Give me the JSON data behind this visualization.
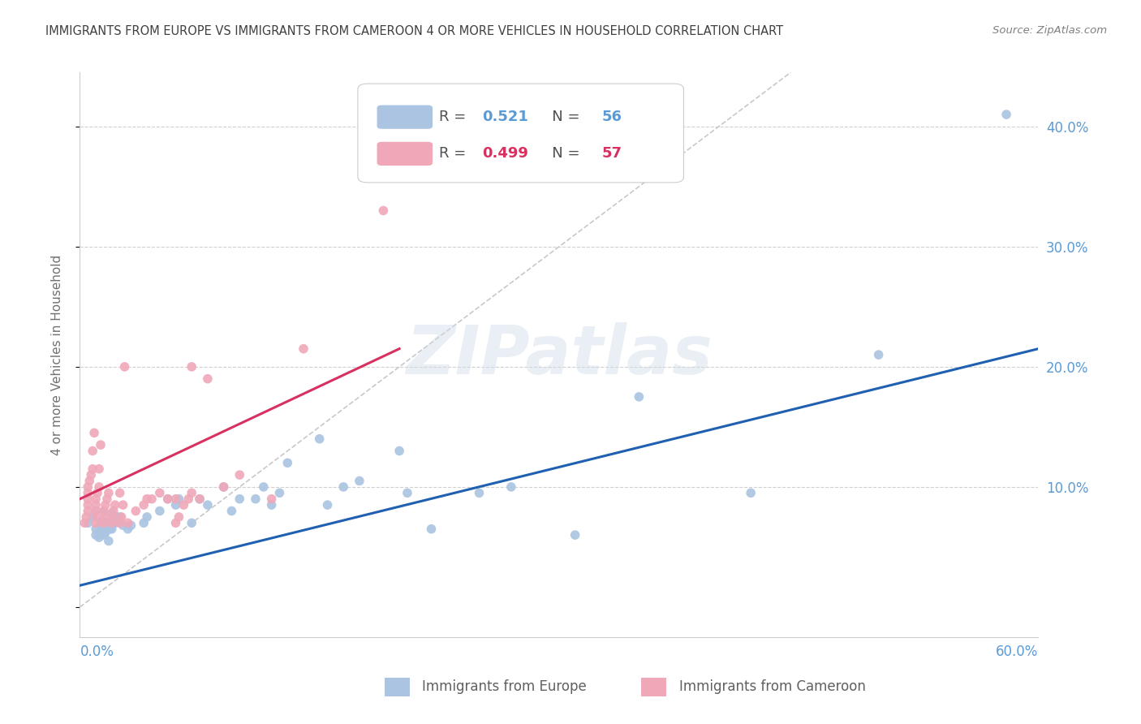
{
  "title": "IMMIGRANTS FROM EUROPE VS IMMIGRANTS FROM CAMEROON 4 OR MORE VEHICLES IN HOUSEHOLD CORRELATION CHART",
  "source": "Source: ZipAtlas.com",
  "ylabel": "4 or more Vehicles in Household",
  "ytick_vals": [
    0.0,
    0.1,
    0.2,
    0.3,
    0.4
  ],
  "ytick_labels": [
    "",
    "10.0%",
    "20.0%",
    "30.0%",
    "40.0%"
  ],
  "xlim": [
    0.0,
    0.6
  ],
  "ylim": [
    -0.025,
    0.445
  ],
  "europe_R": "0.521",
  "europe_N": "56",
  "cameroon_R": "0.499",
  "cameroon_N": "57",
  "europe_color": "#aac4e2",
  "cameroon_color": "#f0a8b8",
  "europe_line_color": "#2060b0",
  "cameroon_line_color": "#d83060",
  "diagonal_color": "#c8c8c8",
  "watermark": "ZIPatlas",
  "legend_europe": "Immigrants from Europe",
  "legend_cameroon": "Immigrants from Cameroon",
  "europe_scatter_x": [
    0.005,
    0.008,
    0.01,
    0.01,
    0.01,
    0.012,
    0.012,
    0.013,
    0.014,
    0.015,
    0.015,
    0.015,
    0.016,
    0.017,
    0.018,
    0.018,
    0.019,
    0.02,
    0.02,
    0.022,
    0.023,
    0.025,
    0.027,
    0.03,
    0.032,
    0.04,
    0.042,
    0.05,
    0.055,
    0.06,
    0.062,
    0.07,
    0.075,
    0.08,
    0.09,
    0.095,
    0.1,
    0.11,
    0.115,
    0.12,
    0.125,
    0.13,
    0.15,
    0.155,
    0.165,
    0.175,
    0.2,
    0.205,
    0.22,
    0.25,
    0.27,
    0.31,
    0.35,
    0.42,
    0.5,
    0.58
  ],
  "europe_scatter_y": [
    0.07,
    0.075,
    0.06,
    0.065,
    0.08,
    0.058,
    0.062,
    0.068,
    0.072,
    0.06,
    0.065,
    0.08,
    0.062,
    0.068,
    0.055,
    0.07,
    0.065,
    0.065,
    0.078,
    0.07,
    0.075,
    0.075,
    0.068,
    0.065,
    0.068,
    0.07,
    0.075,
    0.08,
    0.09,
    0.085,
    0.09,
    0.07,
    0.09,
    0.085,
    0.1,
    0.08,
    0.09,
    0.09,
    0.1,
    0.085,
    0.095,
    0.12,
    0.14,
    0.085,
    0.1,
    0.105,
    0.13,
    0.095,
    0.065,
    0.095,
    0.1,
    0.06,
    0.175,
    0.095,
    0.21,
    0.41
  ],
  "cameroon_scatter_x": [
    0.003,
    0.004,
    0.005,
    0.005,
    0.005,
    0.005,
    0.005,
    0.006,
    0.007,
    0.008,
    0.008,
    0.009,
    0.01,
    0.01,
    0.01,
    0.01,
    0.01,
    0.011,
    0.012,
    0.012,
    0.013,
    0.015,
    0.015,
    0.015,
    0.016,
    0.017,
    0.018,
    0.02,
    0.02,
    0.021,
    0.022,
    0.025,
    0.025,
    0.026,
    0.027,
    0.028,
    0.03,
    0.035,
    0.04,
    0.042,
    0.045,
    0.05,
    0.055,
    0.06,
    0.062,
    0.065,
    0.068,
    0.07,
    0.075,
    0.08,
    0.09,
    0.1,
    0.12,
    0.14,
    0.19,
    0.06,
    0.07
  ],
  "cameroon_scatter_y": [
    0.07,
    0.075,
    0.08,
    0.085,
    0.09,
    0.095,
    0.1,
    0.105,
    0.11,
    0.115,
    0.13,
    0.145,
    0.07,
    0.075,
    0.08,
    0.085,
    0.09,
    0.095,
    0.1,
    0.115,
    0.135,
    0.07,
    0.075,
    0.08,
    0.085,
    0.09,
    0.095,
    0.07,
    0.075,
    0.08,
    0.085,
    0.095,
    0.07,
    0.075,
    0.085,
    0.2,
    0.07,
    0.08,
    0.085,
    0.09,
    0.09,
    0.095,
    0.09,
    0.07,
    0.075,
    0.085,
    0.09,
    0.095,
    0.09,
    0.19,
    0.1,
    0.11,
    0.09,
    0.215,
    0.33,
    0.09,
    0.2
  ],
  "europe_trend_x": [
    0.0,
    0.6
  ],
  "europe_trend_y": [
    0.018,
    0.215
  ],
  "cameroon_trend_x": [
    0.0,
    0.2
  ],
  "cameroon_trend_y": [
    0.09,
    0.215
  ],
  "bg_color": "#ffffff",
  "grid_color": "#d0d0d0",
  "title_color": "#404040",
  "axis_color": "#5b9bd5",
  "marker_size": 70
}
